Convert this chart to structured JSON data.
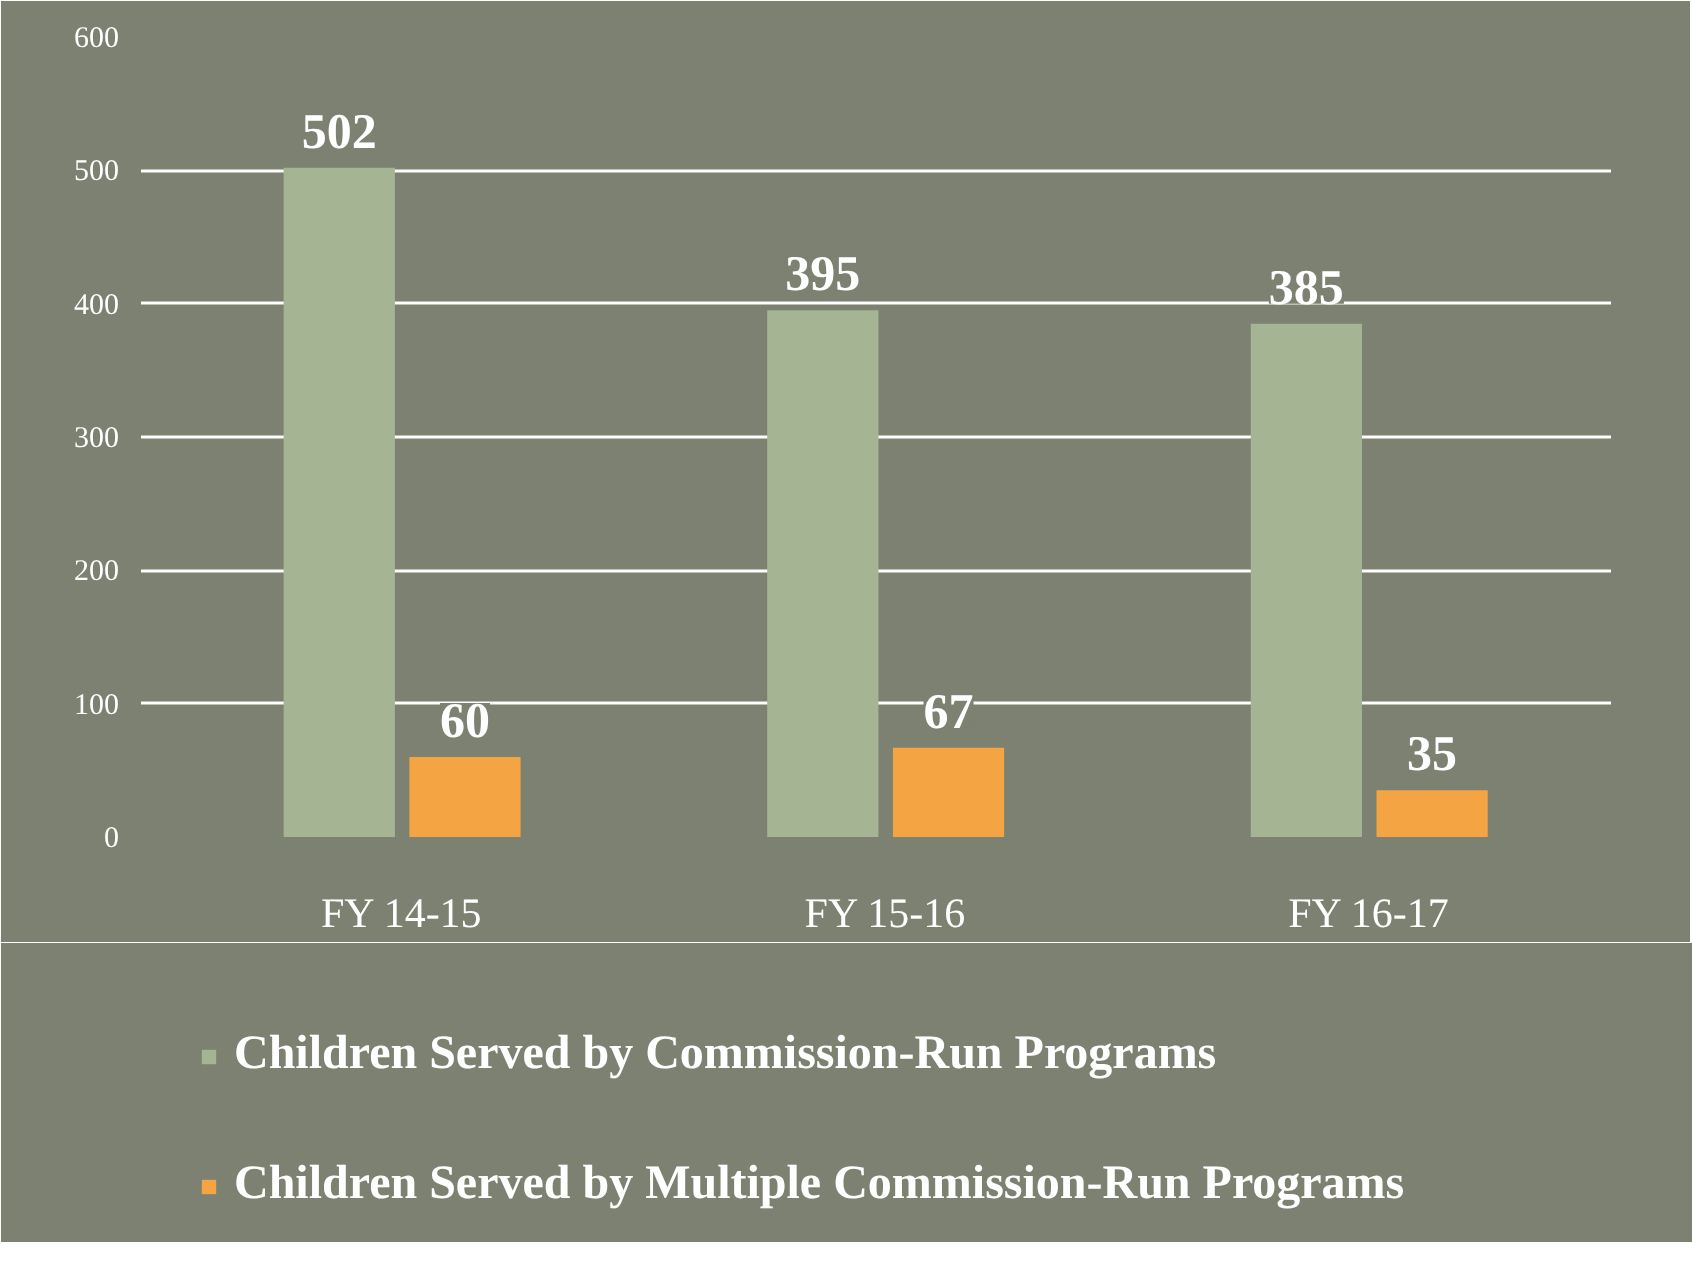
{
  "chart_data": {
    "type": "bar",
    "categories": [
      "FY 14-15",
      "FY 15-16",
      "FY 16-17"
    ],
    "series": [
      {
        "name": "Children Served by Commission-Run Programs",
        "color": "#a5b594",
        "values": [
          502,
          395,
          385
        ]
      },
      {
        "name": "Children Served by Multiple Commission-Run Programs",
        "color": "#f4a443",
        "values": [
          60,
          67,
          35
        ]
      }
    ],
    "ylim": [
      0,
      600
    ],
    "yticks": [
      0,
      100,
      200,
      300,
      400,
      500,
      600
    ],
    "grid": "y",
    "legend": "bottom",
    "data_labels": true
  }
}
